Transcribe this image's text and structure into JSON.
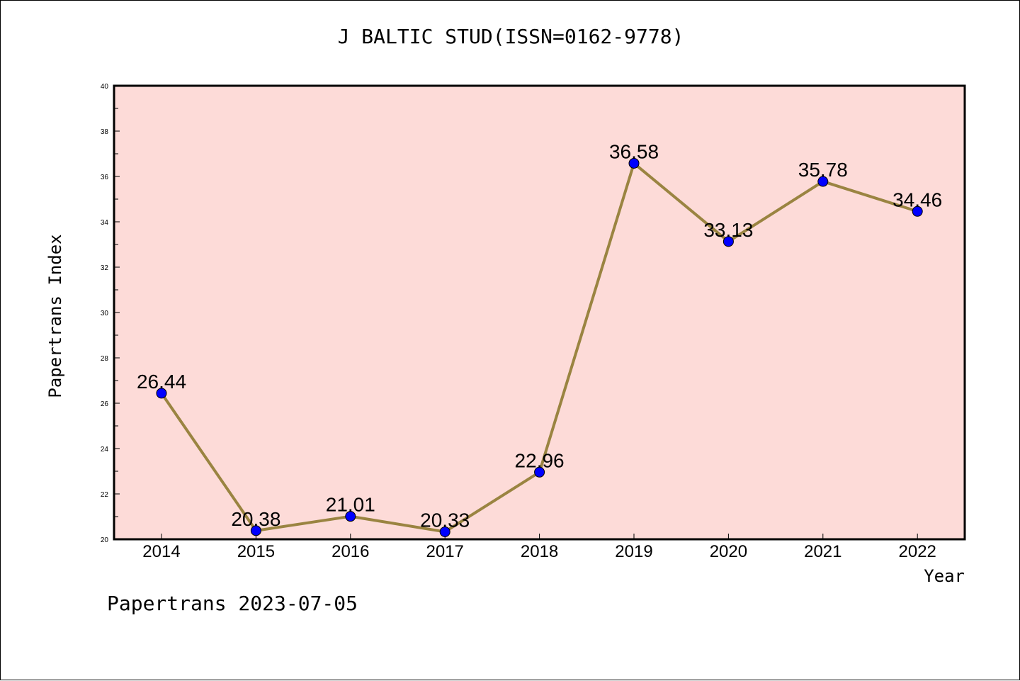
{
  "chart_data": {
    "type": "line",
    "title": "J BALTIC STUD(ISSN=0162-9778)",
    "xlabel": "Year",
    "ylabel": "Papertrans Index",
    "x": [
      "2014",
      "2015",
      "2016",
      "2017",
      "2018",
      "2019",
      "2020",
      "2021",
      "2022"
    ],
    "series": [
      {
        "values": [
          26.44,
          20.38,
          21.01,
          20.33,
          22.96,
          36.58,
          33.13,
          35.78,
          34.46
        ]
      }
    ],
    "data_labels": [
      "26.44",
      "20.38",
      "21.01",
      "20.33",
      "22.96",
      "36.58",
      "33.13",
      "35.78",
      "34.46"
    ],
    "ylim": [
      20,
      40
    ],
    "yticks": [
      "20",
      "22",
      "24",
      "26",
      "28",
      "30",
      "32",
      "34",
      "36",
      "38",
      "40"
    ],
    "grid": false,
    "colors": {
      "plot_background": "#fddbd8",
      "line": "#9a8441",
      "marker": "#0000ff"
    }
  },
  "footer": "Papertrans 2023-07-05"
}
